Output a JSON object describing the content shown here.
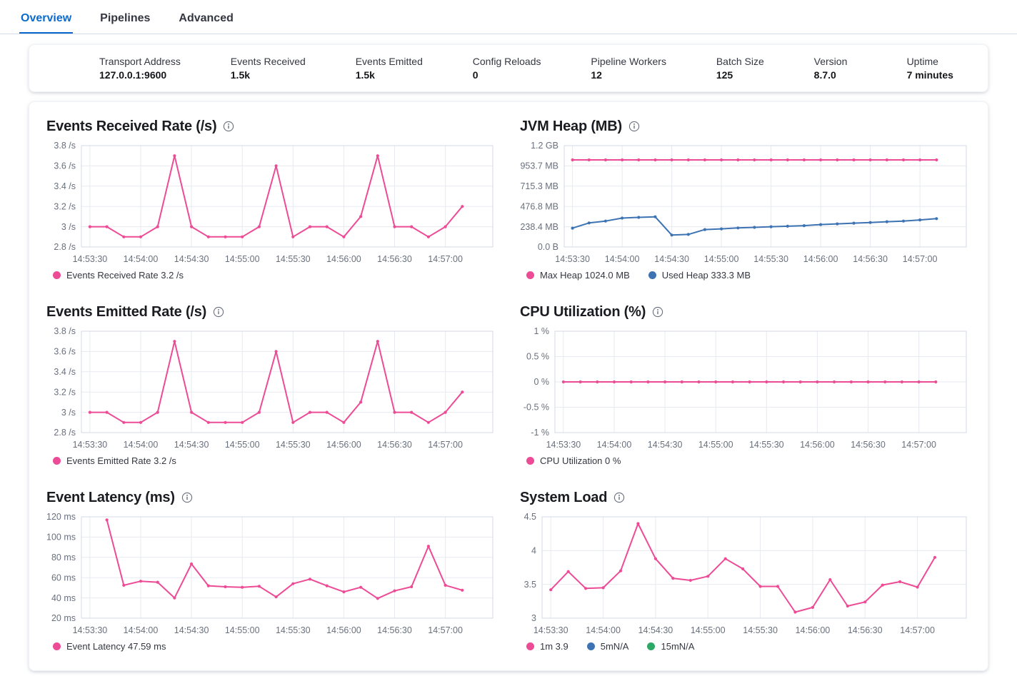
{
  "tabs": [
    {
      "label": "Overview",
      "active": true
    },
    {
      "label": "Pipelines",
      "active": false
    },
    {
      "label": "Advanced",
      "active": false
    }
  ],
  "summary": {
    "items": [
      {
        "label": "Transport Address",
        "value": "127.0.0.1:9600"
      },
      {
        "label": "Events Received",
        "value": "1.5k"
      },
      {
        "label": "Events Emitted",
        "value": "1.5k"
      },
      {
        "label": "Config Reloads",
        "value": "0"
      },
      {
        "label": "Pipeline Workers",
        "value": "12"
      },
      {
        "label": "Batch Size",
        "value": "125"
      },
      {
        "label": "Version",
        "value": "8.7.0"
      },
      {
        "label": "Uptime",
        "value": "7 minutes"
      }
    ]
  },
  "colors": {
    "pink": "#ed4b96",
    "blue": "#3d73b3",
    "green": "#2ca866",
    "tab_active": "#0b6acb",
    "grid": "#e7eaf0",
    "plot_border": "#d3dae6",
    "axis_text": "#69707d"
  },
  "chart_data": [
    {
      "type": "line",
      "title": "Events Received Rate (/s)",
      "info_icon": "info-icon",
      "x_tick_labels": [
        "14:53:30",
        "14:54:00",
        "14:54:30",
        "14:55:00",
        "14:55:30",
        "14:56:00",
        "14:56:30",
        "14:57:00"
      ],
      "x_tick_seconds": [
        0,
        30,
        60,
        90,
        120,
        150,
        180,
        210
      ],
      "x_domain_s": [
        -5,
        238
      ],
      "ylim": [
        2.8,
        3.8
      ],
      "y_ticks": [
        {
          "v": 3.8,
          "label": "3.8 /s"
        },
        {
          "v": 3.6,
          "label": "3.6 /s"
        },
        {
          "v": 3.4,
          "label": "3.4 /s"
        },
        {
          "v": 3.2,
          "label": "3.2 /s"
        },
        {
          "v": 3,
          "label": "3 /s"
        },
        {
          "v": 2.8,
          "label": "2.8 /s"
        }
      ],
      "series": [
        {
          "name": "Events Received Rate",
          "color_key": "pink",
          "start_s": 0,
          "step_s": 10,
          "values": [
            3,
            3,
            2.9,
            2.9,
            3,
            3.7,
            3,
            2.9,
            2.9,
            2.9,
            3,
            3.6,
            2.9,
            3,
            3,
            2.9,
            3.1,
            3.7,
            3,
            3,
            2.9,
            3,
            3.2
          ]
        }
      ],
      "legend": [
        {
          "label": "Events Received Rate 3.2 /s",
          "color_key": "pink"
        }
      ]
    },
    {
      "type": "line",
      "title": "JVM Heap (MB)",
      "info_icon": "info-icon",
      "x_tick_labels": [
        "14:53:30",
        "14:54:00",
        "14:54:30",
        "14:55:00",
        "14:55:30",
        "14:56:00",
        "14:56:30",
        "14:57:00"
      ],
      "x_tick_seconds": [
        0,
        30,
        60,
        90,
        120,
        150,
        180,
        210
      ],
      "x_domain_s": [
        -5,
        238
      ],
      "ylim": [
        0,
        1192
      ],
      "y_ticks": [
        {
          "v": 1192,
          "label": "1.2 GB"
        },
        {
          "v": 953.7,
          "label": "953.7 MB"
        },
        {
          "v": 715.3,
          "label": "715.3 MB"
        },
        {
          "v": 476.8,
          "label": "476.8 MB"
        },
        {
          "v": 238.4,
          "label": "238.4 MB"
        },
        {
          "v": 0,
          "label": "0.0 B"
        }
      ],
      "series": [
        {
          "name": "Max Heap",
          "color_key": "pink",
          "start_s": 0,
          "step_s": 10,
          "values": [
            1024,
            1024,
            1024,
            1024,
            1024,
            1024,
            1024,
            1024,
            1024,
            1024,
            1024,
            1024,
            1024,
            1024,
            1024,
            1024,
            1024,
            1024,
            1024,
            1024,
            1024,
            1024,
            1024
          ]
        },
        {
          "name": "Used Heap",
          "color_key": "blue",
          "start_s": 0,
          "step_s": 10,
          "values": [
            222,
            283,
            305,
            340,
            348,
            355,
            140,
            148,
            205,
            213,
            224,
            231,
            238,
            244,
            251,
            264,
            272,
            280,
            288,
            297,
            305,
            318,
            333.3
          ]
        }
      ],
      "legend": [
        {
          "label": "Max Heap 1024.0 MB",
          "color_key": "pink"
        },
        {
          "label": "Used Heap 333.3 MB",
          "color_key": "blue"
        }
      ]
    },
    {
      "type": "line",
      "title": "Events Emitted Rate (/s)",
      "info_icon": "info-icon",
      "x_tick_labels": [
        "14:53:30",
        "14:54:00",
        "14:54:30",
        "14:55:00",
        "14:55:30",
        "14:56:00",
        "14:56:30",
        "14:57:00"
      ],
      "x_tick_seconds": [
        0,
        30,
        60,
        90,
        120,
        150,
        180,
        210
      ],
      "x_domain_s": [
        -5,
        238
      ],
      "ylim": [
        2.8,
        3.8
      ],
      "y_ticks": [
        {
          "v": 3.8,
          "label": "3.8 /s"
        },
        {
          "v": 3.6,
          "label": "3.6 /s"
        },
        {
          "v": 3.4,
          "label": "3.4 /s"
        },
        {
          "v": 3.2,
          "label": "3.2 /s"
        },
        {
          "v": 3,
          "label": "3 /s"
        },
        {
          "v": 2.8,
          "label": "2.8 /s"
        }
      ],
      "series": [
        {
          "name": "Events Emitted Rate",
          "color_key": "pink",
          "start_s": 0,
          "step_s": 10,
          "values": [
            3,
            3,
            2.9,
            2.9,
            3,
            3.7,
            3,
            2.9,
            2.9,
            2.9,
            3,
            3.6,
            2.9,
            3,
            3,
            2.9,
            3.1,
            3.7,
            3,
            3,
            2.9,
            3,
            3.2
          ]
        }
      ],
      "legend": [
        {
          "label": "Events Emitted Rate 3.2 /s",
          "color_key": "pink"
        }
      ]
    },
    {
      "type": "line",
      "title": "CPU Utilization (%)",
      "info_icon": "info-icon",
      "x_tick_labels": [
        "14:53:30",
        "14:54:00",
        "14:54:30",
        "14:55:00",
        "14:55:30",
        "14:56:00",
        "14:56:30",
        "14:57:00"
      ],
      "x_tick_seconds": [
        0,
        30,
        60,
        90,
        120,
        150,
        180,
        210
      ],
      "x_domain_s": [
        -5,
        238
      ],
      "ylim": [
        -1,
        1
      ],
      "y_ticks": [
        {
          "v": 1,
          "label": "1 %"
        },
        {
          "v": 0.5,
          "label": "0.5 %"
        },
        {
          "v": 0,
          "label": "0 %"
        },
        {
          "v": -0.5,
          "label": "-0.5 %"
        },
        {
          "v": -1,
          "label": "-1 %"
        }
      ],
      "series": [
        {
          "name": "CPU Utilization",
          "color_key": "pink",
          "start_s": 0,
          "step_s": 10,
          "values": [
            0,
            0,
            0,
            0,
            0,
            0,
            0,
            0,
            0,
            0,
            0,
            0,
            0,
            0,
            0,
            0,
            0,
            0,
            0,
            0,
            0,
            0,
            0
          ]
        }
      ],
      "legend": [
        {
          "label": "CPU Utilization 0 %",
          "color_key": "pink"
        }
      ]
    },
    {
      "type": "line",
      "title": "Event Latency (ms)",
      "info_icon": "info-icon",
      "x_tick_labels": [
        "14:53:30",
        "14:54:00",
        "14:54:30",
        "14:55:00",
        "14:55:30",
        "14:56:00",
        "14:56:30",
        "14:57:00"
      ],
      "x_tick_seconds": [
        0,
        30,
        60,
        90,
        120,
        150,
        180,
        210
      ],
      "x_domain_s": [
        -5,
        238
      ],
      "ylim": [
        20,
        120
      ],
      "y_ticks": [
        {
          "v": 120,
          "label": "120 ms"
        },
        {
          "v": 100,
          "label": "100 ms"
        },
        {
          "v": 80,
          "label": "80 ms"
        },
        {
          "v": 60,
          "label": "60 ms"
        },
        {
          "v": 40,
          "label": "40 ms"
        },
        {
          "v": 20,
          "label": "20 ms"
        }
      ],
      "series": [
        {
          "name": "Event Latency",
          "color_key": "pink",
          "start_s": 10,
          "step_s": 10,
          "values": [
            117,
            52.5,
            56.5,
            55.5,
            40,
            73.5,
            52,
            51,
            50.5,
            51.5,
            41,
            54,
            58.5,
            52,
            46,
            50.5,
            39.5,
            47,
            51,
            91,
            52.5,
            47.59
          ]
        }
      ],
      "legend": [
        {
          "label": "Event Latency 47.59 ms",
          "color_key": "pink"
        }
      ]
    },
    {
      "type": "line",
      "title": "System Load",
      "info_icon": "info-icon",
      "x_tick_labels": [
        "14:53:30",
        "14:54:00",
        "14:54:30",
        "14:55:00",
        "14:55:30",
        "14:56:00",
        "14:56:30",
        "14:57:00"
      ],
      "x_tick_seconds": [
        0,
        30,
        60,
        90,
        120,
        150,
        180,
        210
      ],
      "x_domain_s": [
        -5,
        238
      ],
      "ylim": [
        3,
        4.5
      ],
      "y_ticks": [
        {
          "v": 4.5,
          "label": "4.5"
        },
        {
          "v": 4,
          "label": "4"
        },
        {
          "v": 3.5,
          "label": "3.5"
        },
        {
          "v": 3,
          "label": "3"
        }
      ],
      "series": [
        {
          "name": "1m",
          "color_key": "pink",
          "start_s": 0,
          "step_s": 10,
          "values": [
            3.42,
            3.69,
            3.44,
            3.45,
            3.7,
            4.4,
            3.88,
            3.59,
            3.56,
            3.62,
            3.88,
            3.73,
            3.47,
            3.47,
            3.09,
            3.16,
            3.57,
            3.18,
            3.24,
            3.49,
            3.54,
            3.46,
            3.9
          ]
        }
      ],
      "legend": [
        {
          "label": "1m 3.9",
          "color_key": "pink"
        },
        {
          "label": "5mN/A",
          "color_key": "blue"
        },
        {
          "label": "15mN/A",
          "color_key": "green"
        }
      ]
    }
  ]
}
